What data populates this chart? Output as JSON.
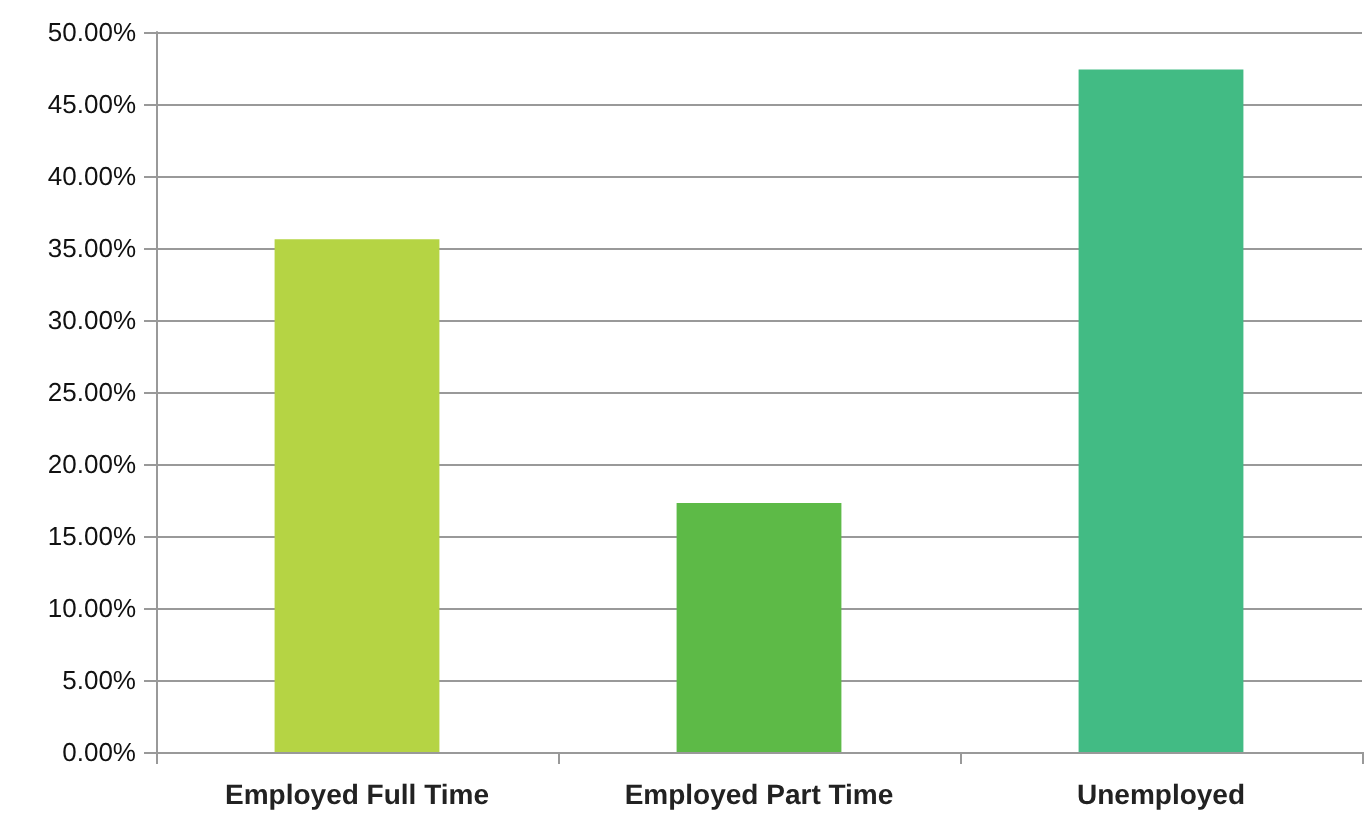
{
  "chart_data": {
    "type": "bar",
    "categories": [
      "Employed Full Time",
      "Employed Part Time",
      "Unemployed"
    ],
    "values": [
      35.6,
      17.3,
      47.4
    ],
    "colors": [
      "#b5d444",
      "#5dba47",
      "#42bb84"
    ],
    "ylim": [
      0,
      50
    ],
    "yticks": [
      {
        "value": 0,
        "label": "0.00%"
      },
      {
        "value": 5,
        "label": "5.00%"
      },
      {
        "value": 10,
        "label": "10.00%"
      },
      {
        "value": 15,
        "label": "15.00%"
      },
      {
        "value": 20,
        "label": "20.00%"
      },
      {
        "value": 25,
        "label": "25.00%"
      },
      {
        "value": 30,
        "label": "30.00%"
      },
      {
        "value": 35,
        "label": "35.00%"
      },
      {
        "value": 40,
        "label": "40.00%"
      },
      {
        "value": 45,
        "label": "45.00%"
      },
      {
        "value": 50,
        "label": "50.00%"
      }
    ],
    "grid": "y"
  }
}
